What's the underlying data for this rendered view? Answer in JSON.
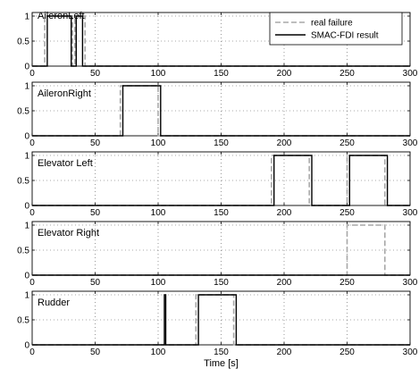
{
  "chart_data": [
    {
      "type": "line",
      "title": "AileronLeft",
      "xlim": [
        0,
        300
      ],
      "ylim": [
        0,
        1
      ],
      "x_ticks": [
        0,
        50,
        100,
        150,
        200,
        250,
        300
      ],
      "y_ticks": [
        0,
        0.5,
        1
      ],
      "grid": true,
      "legend": {
        "placement": "top-right",
        "entries": [
          "real failure",
          "SMAC-FDI result"
        ]
      },
      "series": [
        {
          "name": "real failure",
          "style": "dashed",
          "color": "#a8a8a8",
          "x": [
            0,
            10,
            10,
            32,
            32,
            34,
            34,
            42,
            42,
            300
          ],
          "y": [
            0,
            0,
            1,
            1,
            0,
            0,
            1,
            1,
            0,
            0
          ]
        },
        {
          "name": "SMAC-FDI result",
          "style": "solid",
          "color": "#000000",
          "x": [
            0,
            12,
            12,
            31,
            31,
            35,
            35,
            40,
            40,
            300
          ],
          "y": [
            0,
            0,
            1,
            1,
            0,
            0,
            1,
            1,
            0,
            0
          ]
        }
      ]
    },
    {
      "type": "line",
      "title": "AileronRight",
      "xlim": [
        0,
        300
      ],
      "ylim": [
        0,
        1
      ],
      "x_ticks": [
        0,
        50,
        100,
        150,
        200,
        250,
        300
      ],
      "y_ticks": [
        0,
        0.5,
        1
      ],
      "grid": true,
      "series": [
        {
          "name": "real failure",
          "style": "dashed",
          "color": "#a8a8a8",
          "x": [
            0,
            70,
            70,
            100,
            100,
            300
          ],
          "y": [
            0,
            0,
            1,
            1,
            0,
            0
          ]
        },
        {
          "name": "SMAC-FDI result",
          "style": "solid",
          "color": "#000000",
          "x": [
            0,
            72,
            72,
            102,
            102,
            300
          ],
          "y": [
            0,
            0,
            1,
            1,
            0,
            0
          ]
        }
      ]
    },
    {
      "type": "line",
      "title": "Elevator Left",
      "xlim": [
        0,
        300
      ],
      "ylim": [
        0,
        1
      ],
      "x_ticks": [
        0,
        50,
        100,
        150,
        200,
        250,
        300
      ],
      "y_ticks": [
        0,
        0.5,
        1
      ],
      "grid": true,
      "series": [
        {
          "name": "real failure",
          "style": "dashed",
          "color": "#a8a8a8",
          "x": [
            0,
            190,
            190,
            220,
            220,
            250,
            250,
            280,
            280,
            300
          ],
          "y": [
            0,
            0,
            1,
            1,
            0,
            0,
            1,
            1,
            0,
            0
          ]
        },
        {
          "name": "SMAC-FDI result",
          "style": "solid",
          "color": "#000000",
          "x": [
            0,
            192,
            192,
            222,
            222,
            252,
            252,
            282,
            282,
            300
          ],
          "y": [
            0,
            0,
            1,
            1,
            0,
            0,
            1,
            1,
            0,
            0
          ]
        }
      ]
    },
    {
      "type": "line",
      "title": "Elevator Right",
      "xlim": [
        0,
        300
      ],
      "ylim": [
        0,
        1
      ],
      "x_ticks": [
        0,
        50,
        100,
        150,
        200,
        250,
        300
      ],
      "y_ticks": [
        0,
        0.5,
        1
      ],
      "grid": true,
      "series": [
        {
          "name": "real failure",
          "style": "dashed",
          "color": "#a8a8a8",
          "x": [
            0,
            250,
            250,
            280,
            280,
            300
          ],
          "y": [
            0,
            0,
            1,
            1,
            0,
            0
          ]
        },
        {
          "name": "SMAC-FDI result",
          "style": "solid",
          "color": "#000000",
          "x": [
            0,
            300
          ],
          "y": [
            0,
            0
          ]
        }
      ]
    },
    {
      "type": "line",
      "title": "Rudder",
      "xlabel": "Time [s]",
      "xlim": [
        0,
        300
      ],
      "ylim": [
        0,
        1
      ],
      "x_ticks": [
        0,
        50,
        100,
        150,
        200,
        250,
        300
      ],
      "y_ticks": [
        0,
        0.5,
        1
      ],
      "grid": true,
      "series": [
        {
          "name": "real failure",
          "style": "dashed",
          "color": "#a8a8a8",
          "x": [
            0,
            130,
            130,
            160,
            160,
            300
          ],
          "y": [
            0,
            0,
            1,
            1,
            0,
            0
          ]
        },
        {
          "name": "SMAC-FDI result",
          "style": "solid",
          "color": "#000000",
          "x": [
            0,
            105,
            105,
            106,
            106,
            132,
            132,
            162,
            162,
            300
          ],
          "y": [
            0,
            0,
            1,
            1,
            0,
            0,
            1,
            1,
            0,
            0
          ]
        }
      ]
    }
  ]
}
